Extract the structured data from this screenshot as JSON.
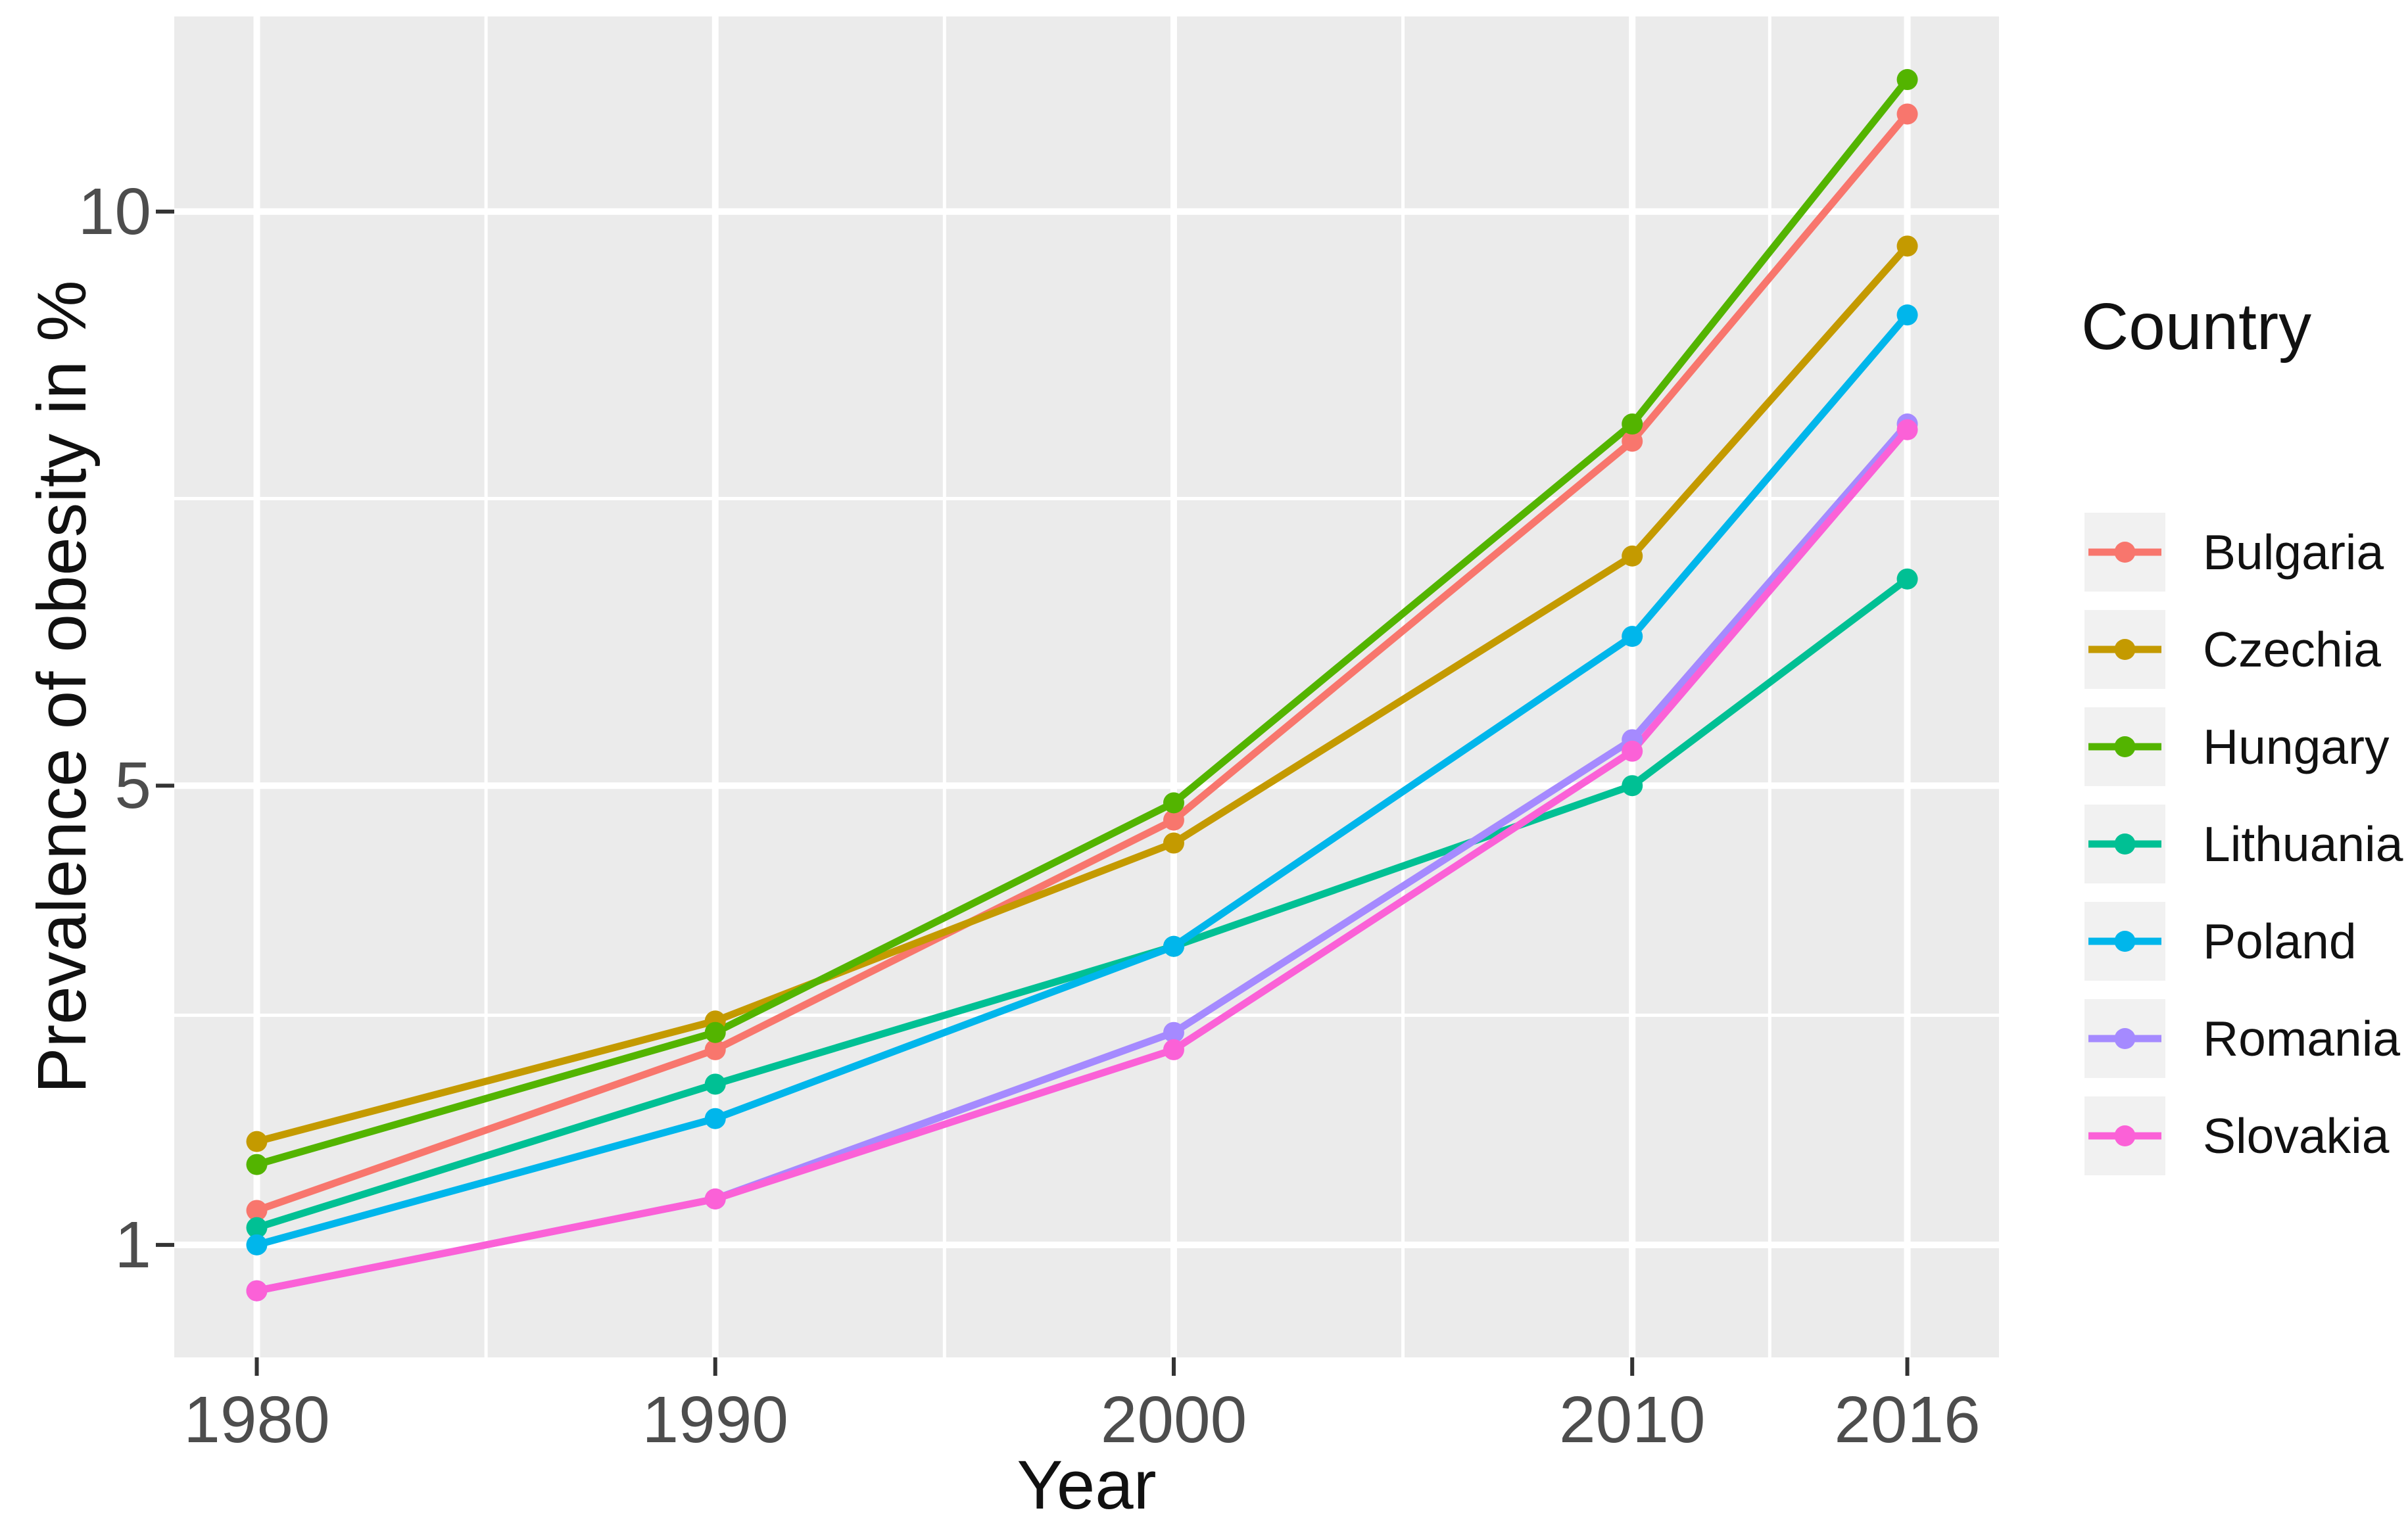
{
  "chart_data": {
    "type": "line",
    "title": "",
    "xlabel": "Year",
    "ylabel": "Prevalence of obesity in %",
    "legend_title": "Country",
    "legend_position": "right",
    "grid": true,
    "x": [
      1980,
      1990,
      2000,
      2010,
      2016
    ],
    "x_tick_labels": [
      "1980",
      "1990",
      "2000",
      "2010",
      "2016"
    ],
    "x_minor_ticks": [
      1985,
      1995,
      2005,
      2013
    ],
    "y_ticks": [
      1,
      5,
      10
    ],
    "y_tick_labels": [
      "1",
      "5",
      "10"
    ],
    "y_minor_ticks": [
      3,
      7.5
    ],
    "xlim": [
      1978.2,
      2018.0
    ],
    "ylim": [
      0.02,
      11.7
    ],
    "series": [
      {
        "name": "Bulgaria",
        "color": "#F8766D",
        "values": [
          1.3,
          2.7,
          4.7,
          8.0,
          10.85
        ]
      },
      {
        "name": "Czechia",
        "color": "#C49A00",
        "values": [
          1.9,
          2.95,
          4.5,
          7.0,
          9.7
        ]
      },
      {
        "name": "Hungary",
        "color": "#53B400",
        "values": [
          1.7,
          2.85,
          4.85,
          8.15,
          11.15
        ]
      },
      {
        "name": "Lithuania",
        "color": "#00C094",
        "values": [
          1.15,
          2.4,
          3.6,
          5.0,
          6.8
        ]
      },
      {
        "name": "Poland",
        "color": "#00B6EB",
        "values": [
          1.0,
          2.1,
          3.6,
          6.3,
          9.1
        ]
      },
      {
        "name": "Romania",
        "color": "#A58AFF",
        "values": [
          0.6,
          1.4,
          2.85,
          5.4,
          8.15
        ]
      },
      {
        "name": "Slovakia",
        "color": "#FB61D7",
        "values": [
          0.6,
          1.4,
          2.7,
          5.3,
          8.1
        ]
      }
    ]
  },
  "style": {
    "page_bg": "#FFFFFF",
    "panel_bg": "#EBEBEB",
    "grid_color": "#FFFFFF",
    "axis_tick_color": "#333333",
    "tick_label_color": "#4D4D4D",
    "title_color": "#111111",
    "legend_key_bg": "#F1F1F1"
  }
}
